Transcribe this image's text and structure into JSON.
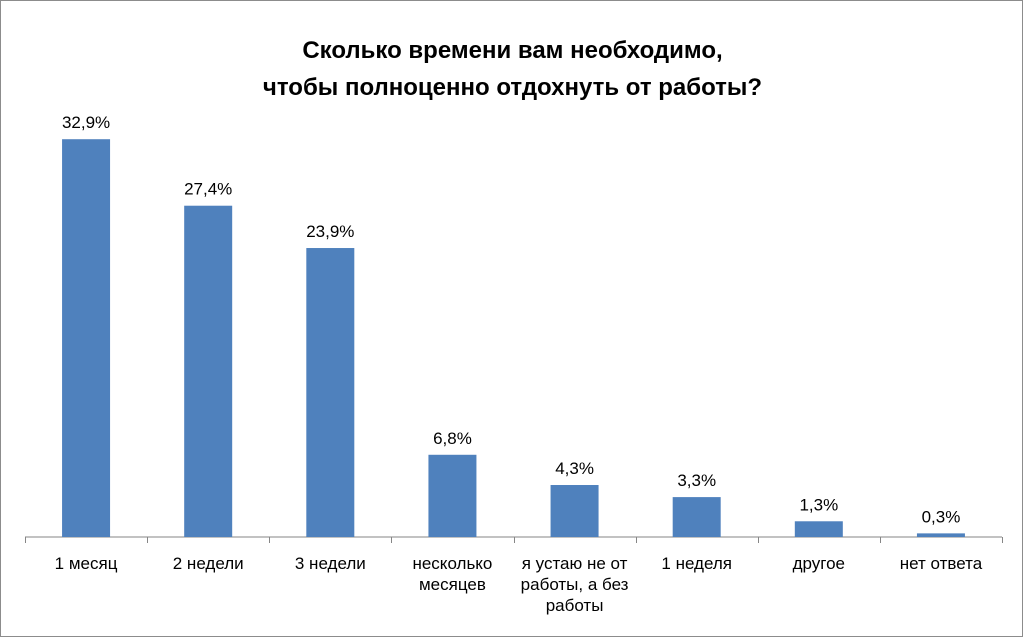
{
  "chart_data": {
    "type": "bar",
    "title_lines": [
      "Сколько времени вам необходимо,",
      "чтобы полноценно отдохнуть от работы?"
    ],
    "categories": [
      [
        "1 месяц"
      ],
      [
        "2 недели"
      ],
      [
        "3 недели"
      ],
      [
        "несколько",
        "месяцев"
      ],
      [
        "я устаю не от",
        "работы, а без",
        "работы"
      ],
      [
        "1 неделя"
      ],
      [
        "другое"
      ],
      [
        "нет ответа"
      ]
    ],
    "values": [
      32.9,
      27.4,
      23.9,
      6.8,
      4.3,
      3.3,
      1.3,
      0.3
    ],
    "data_labels": [
      "32,9%",
      "27,4%",
      "23,9%",
      "6,8%",
      "4,3%",
      "3,3%",
      "1,3%",
      "0,3%"
    ],
    "xlabel": "",
    "ylabel": "",
    "ylim": [
      0,
      33
    ],
    "grid": false,
    "legend": "none",
    "bar_color": "#4f81bd",
    "axis_color": "#868686"
  }
}
